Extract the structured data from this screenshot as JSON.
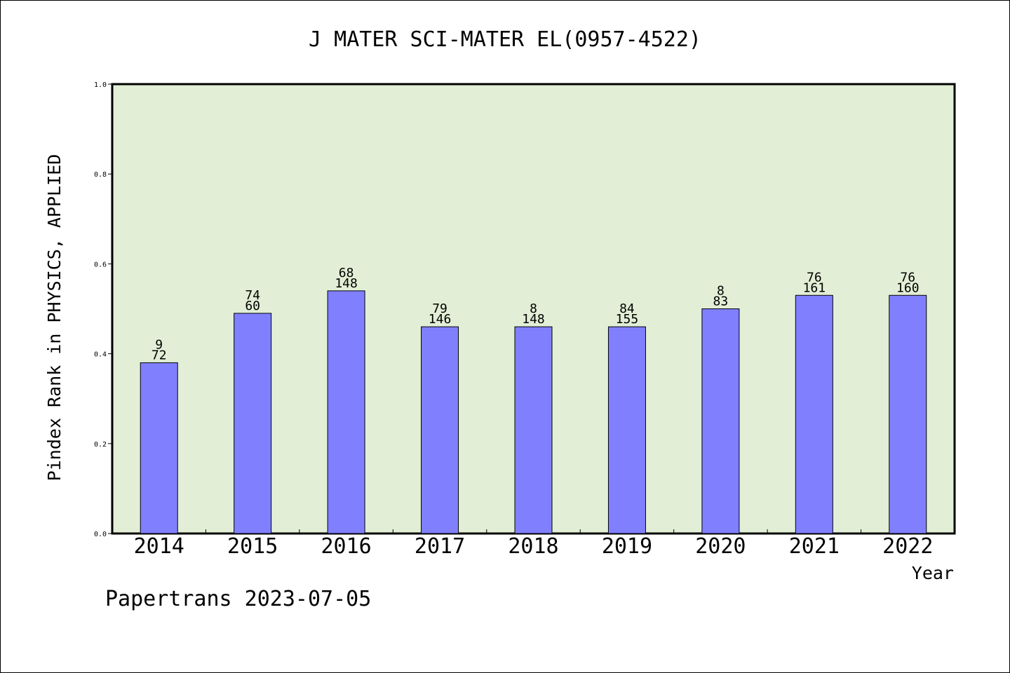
{
  "chart_data": {
    "type": "bar",
    "title": "J MATER SCI-MATER EL(0957-4522)",
    "xlabel": "Year",
    "ylabel": "Pindex Rank in PHYSICS, APPLIED",
    "ylim": [
      0.0,
      1.0
    ],
    "yticks": [
      "0.0",
      "0.2",
      "0.4",
      "0.6",
      "0.8",
      "1.0"
    ],
    "categories": [
      "2014",
      "2015",
      "2016",
      "2017",
      "2018",
      "2019",
      "2020",
      "2021",
      "2022"
    ],
    "values": [
      0.38,
      0.49,
      0.54,
      0.46,
      0.46,
      0.46,
      0.5,
      0.53,
      0.53
    ],
    "labels_top": [
      "9",
      "74",
      "68",
      "79",
      "8",
      "84",
      "8",
      "76",
      "76"
    ],
    "labels_bottom": [
      "72",
      "60",
      "148",
      "146",
      "148",
      "155",
      "83",
      "161",
      "160"
    ],
    "grid": false,
    "colors": {
      "plot_bg": "#e2efd6",
      "bar": "#8080ff"
    }
  },
  "footer": "Papertrans 2023-07-05"
}
